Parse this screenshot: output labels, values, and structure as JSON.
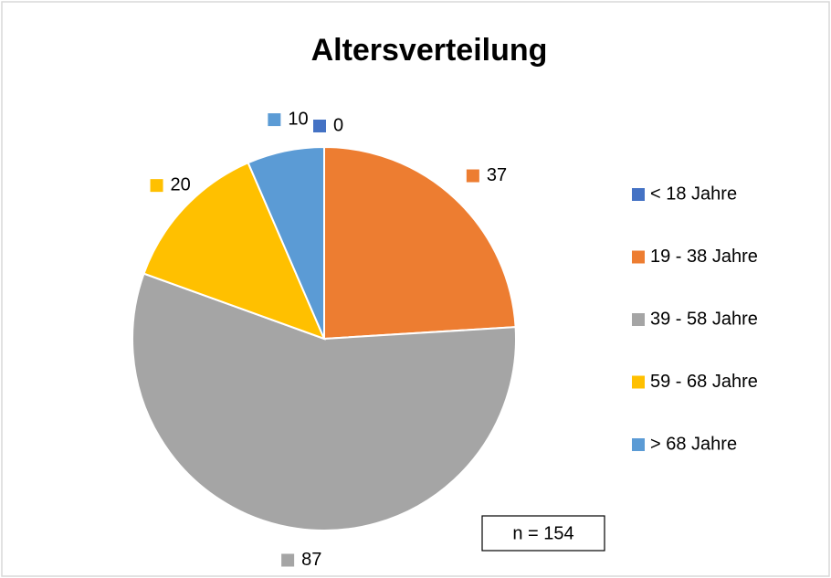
{
  "chart_data": {
    "type": "pie",
    "title": "Altersverteilung",
    "categories": [
      "< 18 Jahre",
      "19 - 38 Jahre",
      "39 - 58 Jahre",
      "59 - 68 Jahre",
      "> 68 Jahre"
    ],
    "values": [
      0,
      37,
      87,
      20,
      10
    ],
    "colors": [
      "#4472c4",
      "#ed7d31",
      "#a5a5a5",
      "#ffc000",
      "#5b9bd5"
    ],
    "legend": "right",
    "annotation": "n = 154"
  }
}
